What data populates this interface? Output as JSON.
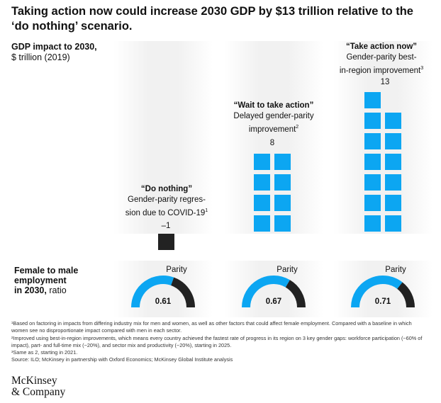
{
  "title": "Taking action now could increase 2030 GDP by $13 trillion relative to the ‘do nothing’ scenario.",
  "colors": {
    "accent": "#0ca6f2",
    "negative": "#222222",
    "ring_remainder": "#222222"
  },
  "chart_data": [
    {
      "type": "bar",
      "ylabel_bold": "GDP impact to 2030,",
      "ylabel_unit": "$ trillion (2019)",
      "categories": [
        "“Do nothing”",
        "“Wait to take action”",
        "“Take action now”"
      ],
      "descriptions": [
        "Gender-parity regres-sion due to COVID-19",
        "Delayed gender-parity improvement",
        "Gender-parity best-in-region improvement"
      ],
      "footnote_marks": [
        "1",
        "2",
        "3"
      ],
      "values": [
        -1,
        8,
        13
      ],
      "value_labels": [
        "–1",
        "8",
        "13"
      ]
    },
    {
      "type": "donut",
      "label_bold": "Female to male employment in 2030,",
      "label_unit": "ratio",
      "reference_label": "Parity",
      "values": [
        0.61,
        0.67,
        0.71
      ],
      "value_labels": [
        "0.61",
        "0.67",
        "0.71"
      ]
    }
  ],
  "footnotes": [
    "¹Based on factoring in impacts from differing industry mix for men and women, as well as other factors that could affect female employment. Compared with a baseline in which women see no disproportionate impact compared with men in each sector.",
    "²Improved using best-in-region improvements, which means every country achieved the fastest rate of progress in its region on 3 key gender gaps: workforce participation (~60% of impact), part- and full-time mix (~20%), and sector mix and productivity (~20%), starting in 2025.",
    "³Same as 2, starting in 2021.",
    "Source: ILO; McKinsey in partnership with Oxford Economics; McKinsey Global Institute analysis"
  ],
  "logo": {
    "line1": "McKinsey",
    "line2": "& Company"
  }
}
